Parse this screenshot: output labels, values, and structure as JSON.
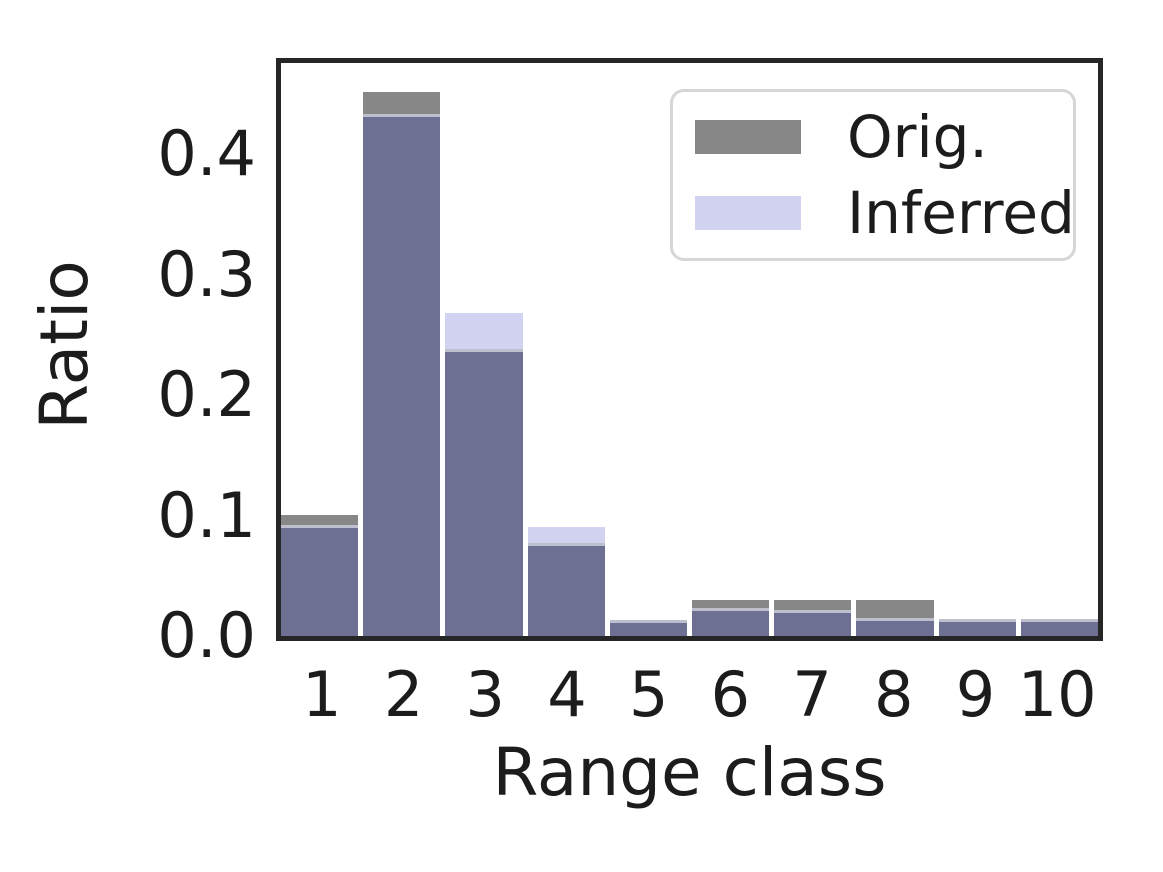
{
  "chart_data": {
    "type": "bar",
    "bar_mode": "overlay",
    "title": "",
    "xlabel": "Range class",
    "ylabel": "Ratio",
    "categories": [
      "1",
      "2",
      "3",
      "4",
      "5",
      "6",
      "7",
      "8",
      "9",
      "10"
    ],
    "series": [
      {
        "name": "Orig.",
        "color": "#878787",
        "values": [
          0.1,
          0.452,
          0.238,
          0.077,
          0.013,
          0.03,
          0.03,
          0.03,
          0.014,
          0.014
        ]
      },
      {
        "name": "Inferred",
        "color": "#d2d3f1",
        "values": [
          0.092,
          0.434,
          0.268,
          0.09,
          0.013,
          0.023,
          0.022,
          0.015,
          0.014,
          0.014
        ]
      }
    ],
    "overlap_color": "#6d6f93",
    "ylim": [
      0,
      0.476
    ],
    "yticks": [
      0.0,
      0.1,
      0.2,
      0.3,
      0.4
    ],
    "yticklabels": [
      "0.0",
      "0.1",
      "0.2",
      "0.3",
      "0.4"
    ],
    "grid": false,
    "legend_position": "upper right"
  },
  "colors": {
    "spine": "#262626",
    "text": "#1c1c1c",
    "legend_border": "#d6d6d6",
    "background": "#ffffff"
  }
}
